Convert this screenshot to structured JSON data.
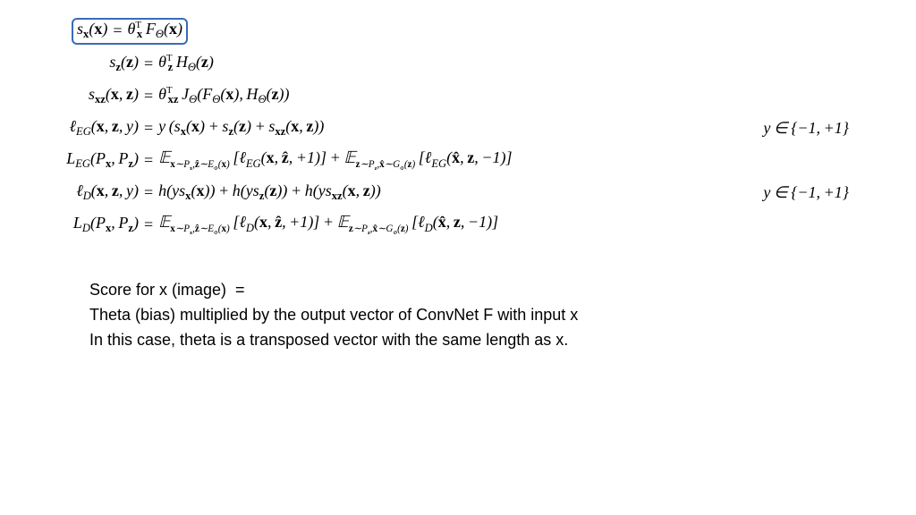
{
  "highlight": {
    "border_color": "#3b6bb5",
    "border_width": 2.5,
    "border_radius": 6
  },
  "equations": {
    "row1": {
      "lhs": "s<sub class='sub'>x</sub>(<span class='bold'>x</span>)",
      "rhs": "θ<span class='supT'>T</span><sub class='sub' style='margin-left:-5px'>x</sub><span class='rm'>&#8201;</span>F<sub class='subit'>Θ</sub>(<span class='bold'>x</span>)"
    },
    "row2": {
      "lhs": "s<sub class='sub'>z</sub>(<span class='bold'>z</span>)",
      "rhs": "θ<span class='supT'>T</span><sub class='sub' style='margin-left:-5px'>z</sub><span class='rm'>&#8201;</span>H<sub class='subit'>Θ</sub>(<span class='bold'>z</span>)"
    },
    "row3": {
      "lhs": "s<sub class='sub'>xz</sub>(<span class='bold'>x</span>,&#8201;<span class='bold'>z</span>)",
      "rhs": "θ<span class='supT'>T</span><sub class='sub' style='margin-left:-5px'>xz</sub><span class='rm'>&#8201;</span>J<sub class='subit'>Θ</sub>(F<sub class='subit'>Θ</sub>(<span class='bold'>x</span>),&#8201;H<sub class='subit'>Θ</sub>(<span class='bold'>z</span>))"
    },
    "row4": {
      "lhs": "ℓ<sub class='subit scr'>EG</sub>(<span class='bold'>x</span>,&#8201;<span class='bold'>z</span>,&#8201;y)",
      "rhs": "y&#8201;(s<sub class='sub'>x</sub>(<span class='bold'>x</span>)&#8201;+&#8201;s<sub class='sub'>z</sub>(<span class='bold'>z</span>)&#8201;+&#8201;s<sub class='sub'>xz</sub>(<span class='bold'>x</span>,&#8201;<span class='bold'>z</span>))",
      "side": "y&#8201;∈&#8201;{−1,&#8201;+1}"
    },
    "row5": {
      "lhs": "<span class='scr'>L</span><sub class='subit scr'>EG</sub>(P<sub class='sub'>x</sub>,&#8201;P<sub class='sub'>z</sub>)",
      "rhs": "<span class='bb'>𝔼</span><sub class='tiny'><span class='bold'>x</span>∼P<span class='subsub bold'>x</span>,<span class='bold'>ẑ</span>∼<span class='scr'>E</span><span class='subsub'>Φ</span>(<span class='bold'>x</span>)</sub>&#8201;[ℓ<sub class='subit scr'>EG</sub>(<span class='bold'>x</span>,&#8201;<span class='bold'>ẑ</span>,&#8201;+1)]&#8201;+&#8201;<span class='bb'>𝔼</span><sub class='tiny'><span class='bold'>z</span>∼P<span class='subsub bold'>z</span>,<span class='bold'>x̂</span>∼<span class='scr'>G</span><span class='subsub'>Φ</span>(<span class='bold'>z</span>)</sub>&#8201;[ℓ<sub class='subit scr'>EG</sub>(<span class='bold'>x̂</span>,&#8201;<span class='bold'>z</span>,&#8201;−1)]"
    },
    "row6": {
      "lhs": "ℓ<sub class='subit scr'>D</sub>(<span class='bold'>x</span>,&#8201;<span class='bold'>z</span>,&#8201;y)",
      "rhs": "h(ys<sub class='sub'>x</sub>(<span class='bold'>x</span>))&#8201;+&#8201;h(ys<sub class='sub'>z</sub>(<span class='bold'>z</span>))&#8201;+&#8201;h(ys<sub class='sub'>xz</sub>(<span class='bold'>x</span>,&#8201;<span class='bold'>z</span>))",
      "side": "y&#8201;∈&#8201;{−1,&#8201;+1}"
    },
    "row7": {
      "lhs": "<span class='scr'>L</span><sub class='subit scr'>D</sub>(P<sub class='sub'>x</sub>,&#8201;P<sub class='sub'>z</sub>)",
      "rhs": "<span class='bb'>𝔼</span><sub class='tiny'><span class='bold'>x</span>∼P<span class='subsub bold'>x</span>,<span class='bold'>ẑ</span>∼<span class='scr'>E</span><span class='subsub'>Φ</span>(<span class='bold'>x</span>)</sub>&#8201;[ℓ<sub class='subit scr'>D</sub>(<span class='bold'>x</span>,&#8201;<span class='bold'>ẑ</span>,&#8201;+1)]&#8201;+&#8201;<span class='bb'>𝔼</span><sub class='tiny'><span class='bold'>z</span>∼P<span class='subsub bold'>z</span>,<span class='bold'>x̂</span>∼<span class='scr'>G</span><span class='subsub'>Φ</span>(<span class='bold'>z</span>)</sub>&#8201;[ℓ<sub class='subit scr'>D</sub>(<span class='bold'>x̂</span>,&#8201;<span class='bold'>z</span>,&#8201;−1)]"
    }
  },
  "explanation": {
    "line1": "Score for x (image) &nbsp;=",
    "line2": "Theta (bias) multiplied by the output vector of ConvNet F with input x",
    "line3": "In this case, theta is a transposed vector with the same length as x."
  },
  "typography": {
    "math_font": "Times New Roman",
    "explanation_font": "Arial",
    "base_fontsize": 18,
    "text_color": "#000000",
    "background_color": "#ffffff"
  }
}
